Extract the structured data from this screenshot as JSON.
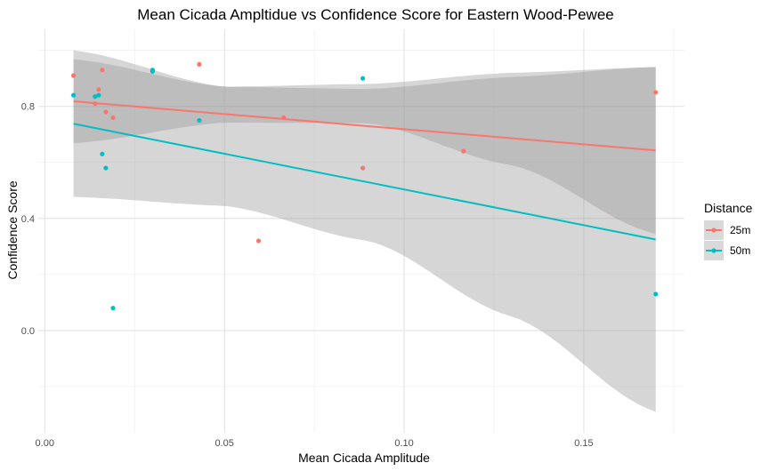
{
  "chart_data": {
    "type": "scatter",
    "title": "Mean Cicada Ampltidue vs Confidence Score for Eastern Wood-Pewee",
    "xlabel": "Mean Cicada Amplitude",
    "ylabel": "Confidence Score",
    "xlim": [
      -0.0018,
      0.178
    ],
    "ylim": [
      -0.365,
      1.075
    ],
    "x_ticks": [
      0.0,
      0.05,
      0.1,
      0.15
    ],
    "x_tick_labels": [
      "0.00",
      "0.05",
      "0.10",
      "0.15"
    ],
    "y_ticks": [
      0.0,
      0.4,
      0.8
    ],
    "y_tick_labels": [
      "0.0",
      "0.4",
      "0.8"
    ],
    "grid": true,
    "legend": {
      "title": "Distance",
      "placement": "right"
    },
    "series": [
      {
        "name": "25m",
        "color": "#F8766D",
        "points": [
          [
            0.008,
            0.91
          ],
          [
            0.016,
            0.93
          ],
          [
            0.014,
            0.81
          ],
          [
            0.015,
            0.86
          ],
          [
            0.017,
            0.78
          ],
          [
            0.019,
            0.76
          ],
          [
            0.043,
            0.95
          ],
          [
            0.0595,
            0.32
          ],
          [
            0.0665,
            0.76
          ],
          [
            0.0885,
            0.58
          ],
          [
            0.1165,
            0.64
          ],
          [
            0.17,
            0.85
          ]
        ],
        "fit": [
          [
            0.008,
            0.818
          ],
          [
            0.17,
            0.643
          ]
        ],
        "band_lower": [
          [
            0.008,
            0.668
          ],
          [
            0.05,
            0.742
          ],
          [
            0.09,
            0.74
          ],
          [
            0.13,
            0.59
          ],
          [
            0.17,
            0.345
          ]
        ],
        "band_upper": [
          [
            0.008,
            0.968
          ],
          [
            0.05,
            0.87
          ],
          [
            0.09,
            0.862
          ],
          [
            0.13,
            0.905
          ],
          [
            0.17,
            0.941
          ]
        ]
      },
      {
        "name": "50m",
        "color": "#00BFC4",
        "points": [
          [
            0.008,
            0.84
          ],
          [
            0.015,
            0.84
          ],
          [
            0.014,
            0.835
          ],
          [
            0.016,
            0.63
          ],
          [
            0.017,
            0.58
          ],
          [
            0.019,
            0.08
          ],
          [
            0.03,
            0.93
          ],
          [
            0.03,
            0.925
          ],
          [
            0.043,
            0.75
          ],
          [
            0.0885,
            0.9
          ],
          [
            0.17,
            0.13
          ]
        ],
        "fit": [
          [
            0.008,
            0.738
          ],
          [
            0.17,
            0.325
          ]
        ],
        "band_lower": [
          [
            0.008,
            0.477
          ],
          [
            0.05,
            0.445
          ],
          [
            0.09,
            0.32
          ],
          [
            0.13,
            0.05
          ],
          [
            0.17,
            -0.29
          ]
        ],
        "band_upper": [
          [
            0.008,
            1.0
          ],
          [
            0.05,
            0.87
          ],
          [
            0.09,
            0.88
          ],
          [
            0.13,
            0.92
          ],
          [
            0.17,
            0.94
          ]
        ]
      }
    ]
  }
}
